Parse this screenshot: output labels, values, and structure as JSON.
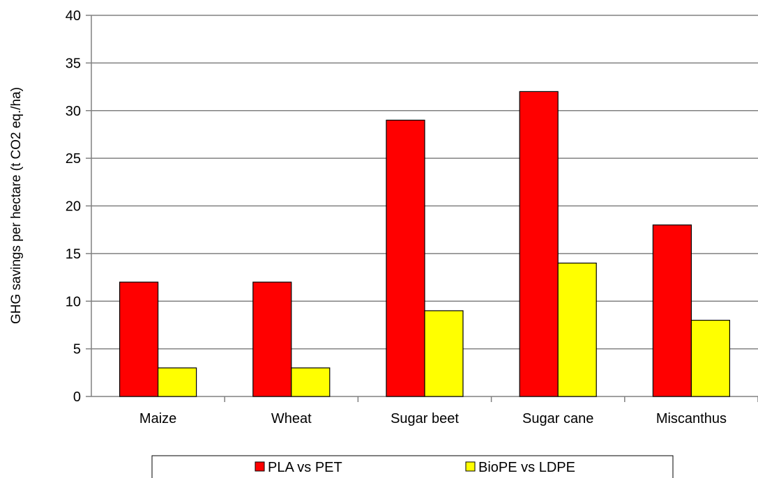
{
  "chart_data": {
    "type": "bar",
    "title": "",
    "xlabel": "",
    "ylabel": "GHG savings per hectare (t CO2 eq./ha)",
    "categories": [
      "Maize",
      "Wheat",
      "Sugar beet",
      "Sugar cane",
      "Miscanthus"
    ],
    "series": [
      {
        "name": "PLA vs PET",
        "values": [
          12,
          12,
          29,
          32,
          18
        ],
        "color": "#ff0000"
      },
      {
        "name": "BioPE vs LDPE",
        "values": [
          3,
          3,
          9,
          14,
          8
        ],
        "color": "#ffff00"
      }
    ],
    "ylim": [
      0,
      40
    ],
    "yticks": [
      0,
      5,
      10,
      15,
      20,
      25,
      30,
      35,
      40
    ],
    "grid": true,
    "legend": "bottom",
    "colors": {
      "grid": "#808080",
      "axis": "#808080",
      "bar_edge": "#000000"
    }
  }
}
